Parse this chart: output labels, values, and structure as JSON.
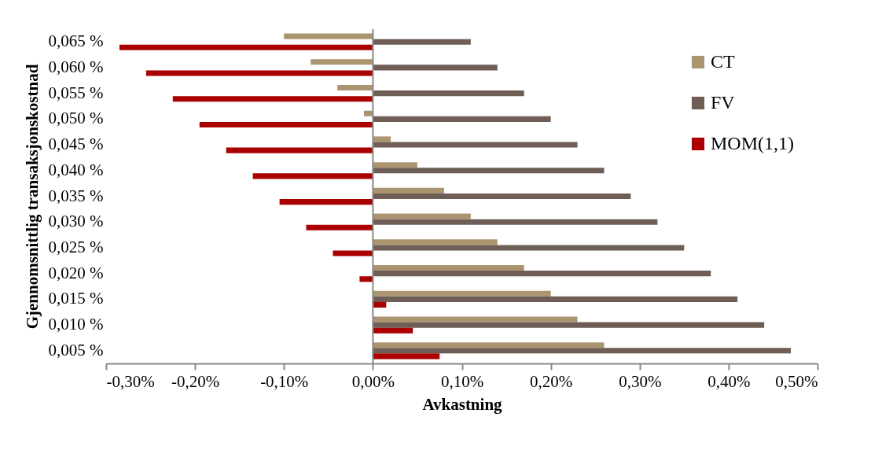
{
  "chart_data": {
    "type": "bar",
    "orientation": "horizontal",
    "xlabel": "Avkastning",
    "ylabel": "Gjennomsnittlig transaksjonskostnad",
    "categories": [
      "0,065 %",
      "0,060 %",
      "0,055 %",
      "0,050 %",
      "0,045 %",
      "0,040 %",
      "0,035 %",
      "0,030 %",
      "0,025 %",
      "0,020 %",
      "0,015 %",
      "0,010 %",
      "0,005 %"
    ],
    "series": [
      {
        "name": "CT",
        "color": "#ab9470",
        "values": [
          -0.1,
          -0.07,
          -0.04,
          -0.01,
          0.02,
          0.05,
          0.08,
          0.11,
          0.14,
          0.17,
          0.2,
          0.23,
          0.26
        ]
      },
      {
        "name": "FV",
        "color": "#6e5e56",
        "values": [
          0.11,
          0.14,
          0.17,
          0.2,
          0.23,
          0.26,
          0.29,
          0.32,
          0.35,
          0.38,
          0.41,
          0.44,
          0.47
        ]
      },
      {
        "name": "MOM(1,1)",
        "color": "#aa0000",
        "values": [
          -0.285,
          -0.255,
          -0.225,
          -0.195,
          -0.165,
          -0.135,
          -0.105,
          -0.075,
          -0.045,
          -0.015,
          0.015,
          0.045,
          0.075
        ]
      }
    ],
    "xlim": [
      -0.3,
      0.5
    ],
    "xticks": [
      {
        "value": -0.3,
        "label": "-0,30%"
      },
      {
        "value": -0.2,
        "label": "-0,20%"
      },
      {
        "value": -0.1,
        "label": "-0,10%"
      },
      {
        "value": 0,
        "label": "0,00%"
      },
      {
        "value": 0.1,
        "label": "0,10%"
      },
      {
        "value": 0.2,
        "label": "0,20%"
      },
      {
        "value": 0.3,
        "label": "0,30%"
      },
      {
        "value": 0.4,
        "label": "0,40%"
      },
      {
        "value": 0.5,
        "label": "0,50%"
      }
    ],
    "ref_lines": [
      {
        "axis": "x",
        "value": 0,
        "color": "#888888",
        "line_style": "solid"
      }
    ],
    "grid": false,
    "legend": "top right"
  }
}
